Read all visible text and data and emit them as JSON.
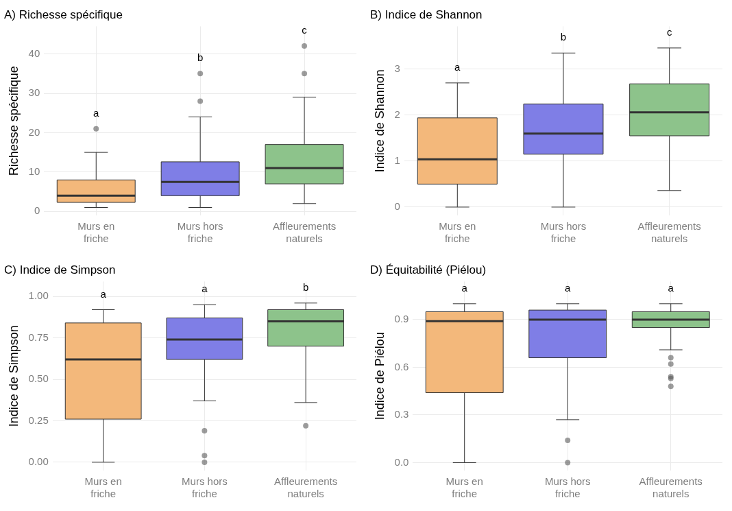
{
  "chart_data": [
    {
      "type": "box",
      "title": "A) Richesse spécifique",
      "ylabel": "Richesse spécifique",
      "categories": [
        "Murs en friche",
        "Murs hors friche",
        "Affleurements naturels"
      ],
      "colors": [
        "#f3b87b",
        "#7f7ee6",
        "#8dc38b"
      ],
      "boxes": [
        {
          "low": 1,
          "q1": 2.3,
          "median": 4,
          "q3": 8,
          "high": 15,
          "outliers": [
            21
          ]
        },
        {
          "low": 1,
          "q1": 4,
          "median": 7.5,
          "q3": 12.6,
          "high": 24,
          "outliers": [
            28,
            35
          ]
        },
        {
          "low": 2,
          "q1": 7,
          "median": 11,
          "q3": 17,
          "high": 29,
          "outliers": [
            35,
            42
          ]
        }
      ],
      "ylim": [
        -1,
        47
      ],
      "yticks": [
        0,
        10,
        20,
        30,
        40
      ],
      "grid": true,
      "annotations": [
        "a",
        "b",
        "c"
      ]
    },
    {
      "type": "box",
      "title": "B) Indice de Shannon",
      "ylabel": "Indice de Shannon",
      "categories": [
        "Murs en friche",
        "Murs hors friche",
        "Affleurements naturels"
      ],
      "colors": [
        "#f3b87b",
        "#7f7ee6",
        "#8dc38b"
      ],
      "boxes": [
        {
          "low": 0,
          "q1": 0.5,
          "median": 1.04,
          "q3": 1.94,
          "high": 2.7
        },
        {
          "low": 0,
          "q1": 1.15,
          "median": 1.6,
          "q3": 2.24,
          "high": 3.35
        },
        {
          "low": 0.36,
          "q1": 1.55,
          "median": 2.06,
          "q3": 2.68,
          "high": 3.46
        }
      ],
      "ylim": [
        -0.18,
        3.93
      ],
      "yticks": [
        0,
        1,
        2,
        3
      ],
      "grid": true,
      "annotations": [
        "a",
        "b",
        "c"
      ]
    },
    {
      "type": "box",
      "title": "C) Indice de Simpson",
      "ylabel": "Indice de Simpson",
      "categories": [
        "Murs en friche",
        "Murs hors friche",
        "Affleurements naturels"
      ],
      "colors": [
        "#f3b87b",
        "#7f7ee6",
        "#8dc38b"
      ],
      "boxes": [
        {
          "low": 0,
          "q1": 0.26,
          "median": 0.62,
          "q3": 0.84,
          "high": 0.92
        },
        {
          "low": 0.37,
          "q1": 0.62,
          "median": 0.74,
          "q3": 0.87,
          "high": 0.95,
          "outliers": [
            0.19,
            0.04,
            0
          ]
        },
        {
          "low": 0.36,
          "q1": 0.7,
          "median": 0.85,
          "q3": 0.92,
          "high": 0.96,
          "outliers": [
            0.22
          ]
        }
      ],
      "ylim": [
        -0.05,
        1.09
      ],
      "yticks": [
        {
          "value": 0,
          "label": "0.00"
        },
        {
          "value": 0.25,
          "label": "0.25"
        },
        {
          "value": 0.5,
          "label": "0.50"
        },
        {
          "value": 0.75,
          "label": "0.75"
        },
        {
          "value": 1,
          "label": "1.00"
        }
      ],
      "grid": true,
      "annotations": [
        "a",
        "a",
        "b"
      ]
    },
    {
      "type": "box",
      "title": "D) Équitabilité (Piélou)",
      "ylabel": "Indice de Piélou",
      "categories": [
        "Murs en friche",
        "Murs hors friche",
        "Affleurements naturels"
      ],
      "colors": [
        "#f3b87b",
        "#7f7ee6",
        "#8dc38b"
      ],
      "boxes": [
        {
          "low": 0,
          "q1": 0.44,
          "median": 0.89,
          "q3": 0.95,
          "high": 1
        },
        {
          "low": 0.27,
          "q1": 0.66,
          "median": 0.9,
          "q3": 0.96,
          "high": 1,
          "outliers": [
            0.14,
            0
          ]
        },
        {
          "low": 0.71,
          "q1": 0.85,
          "median": 0.9,
          "q3": 0.95,
          "high": 1,
          "outliers": [
            0.66,
            0.62,
            0.54,
            0.53,
            0.48
          ]
        }
      ],
      "ylim": [
        -0.05,
        1.14
      ],
      "yticks": [
        {
          "value": 0,
          "label": "0.0"
        },
        {
          "value": 0.3,
          "label": "0.3"
        },
        {
          "value": 0.6,
          "label": "0.6"
        },
        {
          "value": 0.9,
          "label": "0.9"
        }
      ],
      "grid": true,
      "annotations": [
        "a",
        "a",
        "a"
      ]
    }
  ]
}
